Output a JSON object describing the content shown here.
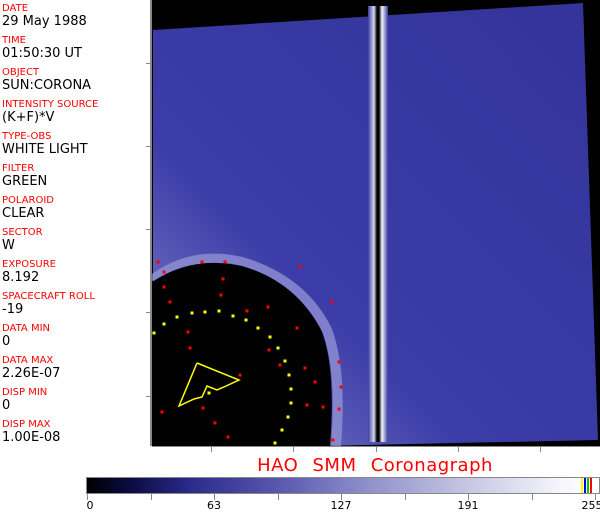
{
  "metadata_panel": {
    "fields": [
      {
        "label": "DATE",
        "value": "29 May 1988"
      },
      {
        "label": "TIME",
        "value": "01:50:30 UT"
      },
      {
        "label": "OBJECT",
        "value": "SUN:CORONA"
      },
      {
        "label": "INTENSITY SOURCE",
        "value": "(K+F)*V"
      },
      {
        "label": "TYPE-OBS",
        "value": "WHITE LIGHT"
      },
      {
        "label": "FILTER",
        "value": "GREEN"
      },
      {
        "label": "POLAROID",
        "value": "CLEAR"
      },
      {
        "label": "SECTOR",
        "value": "W"
      },
      {
        "label": "EXPOSURE",
        "value": "8.192"
      },
      {
        "label": "SPACECRAFT ROLL",
        "value": "-19"
      },
      {
        "label": "DATA MIN",
        "value": "0"
      },
      {
        "label": "DATA MAX",
        "value": "2.26E-07"
      },
      {
        "label": "DISP MIN",
        "value": "0"
      },
      {
        "label": "DISP MAX",
        "value": "1.00E-08"
      }
    ]
  },
  "title": "HAO  SMM  Coronagraph",
  "colorbar": {
    "tick_labels": [
      "0",
      "63",
      "127",
      "191",
      "255"
    ],
    "range": [
      0,
      255
    ],
    "end_colors": [
      "#ffff00",
      "#0000ff",
      "#00cc00",
      "#ff0000"
    ]
  },
  "colors": {
    "label": "#ff0000",
    "field": "#3a3aa0",
    "overlay_red": "#ff0000",
    "overlay_yellow": "#ffff00"
  }
}
